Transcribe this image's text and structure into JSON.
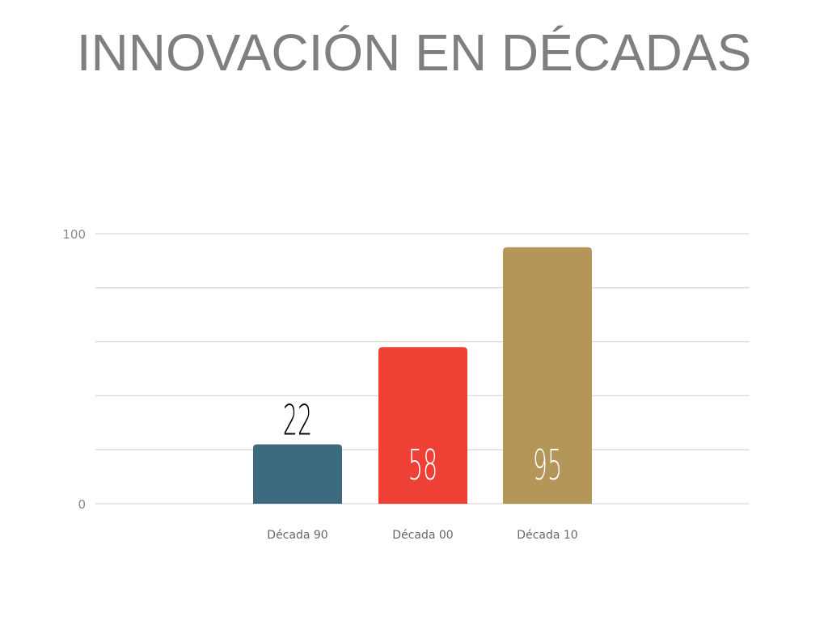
{
  "chart_data": {
    "type": "bar",
    "title": "INNOVACIÓN EN DÉCADAS",
    "categories": [
      "Década 90",
      "Década 00",
      "Década 10"
    ],
    "values": [
      22,
      58,
      95
    ],
    "colors": [
      "#3d6a7f",
      "#ef4035",
      "#b59659"
    ],
    "label_colors": [
      "#000000",
      "#ffffff",
      "#ffffff"
    ],
    "ylim": [
      0,
      100
    ],
    "ytick_labels": [
      "0",
      "100"
    ],
    "grid_step": 20,
    "grid": true,
    "xlabel": "",
    "ylabel": ""
  }
}
